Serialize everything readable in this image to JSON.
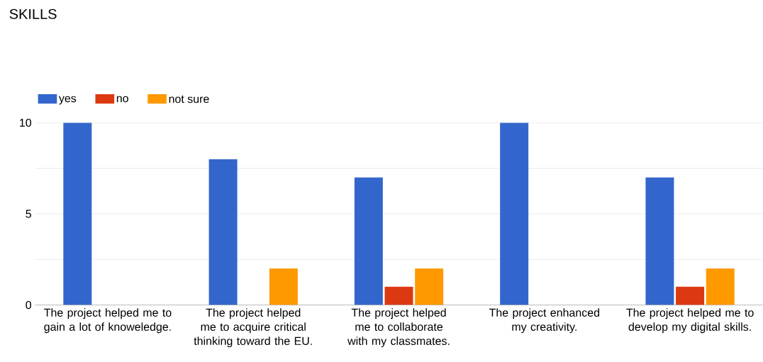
{
  "chart_data": {
    "type": "bar",
    "title": "SKILLS",
    "categories": [
      "The project helped me to gain a lot of knoweledge.",
      "The project helped me to acquire critical thinking toward the EU.",
      "The project helped me to collaborate with my classmates.",
      "The project enhanced my creativity.",
      "The project helped me to develop my digital skills."
    ],
    "series": [
      {
        "name": "yes",
        "color": "#3366cc",
        "values": [
          10,
          8,
          7,
          10,
          7
        ]
      },
      {
        "name": "no",
        "color": "#dc3912",
        "values": [
          0,
          0,
          1,
          0,
          1
        ]
      },
      {
        "name": "not sure",
        "color": "#ff9900",
        "values": [
          0,
          2,
          2,
          0,
          2
        ]
      }
    ],
    "ylim": [
      0,
      10
    ],
    "yticks": [
      0,
      {
        "value": 2.5,
        "label": null
      },
      5,
      {
        "value": 7.5,
        "label": null
      },
      10
    ],
    "grid": "y",
    "legend": "top left"
  }
}
